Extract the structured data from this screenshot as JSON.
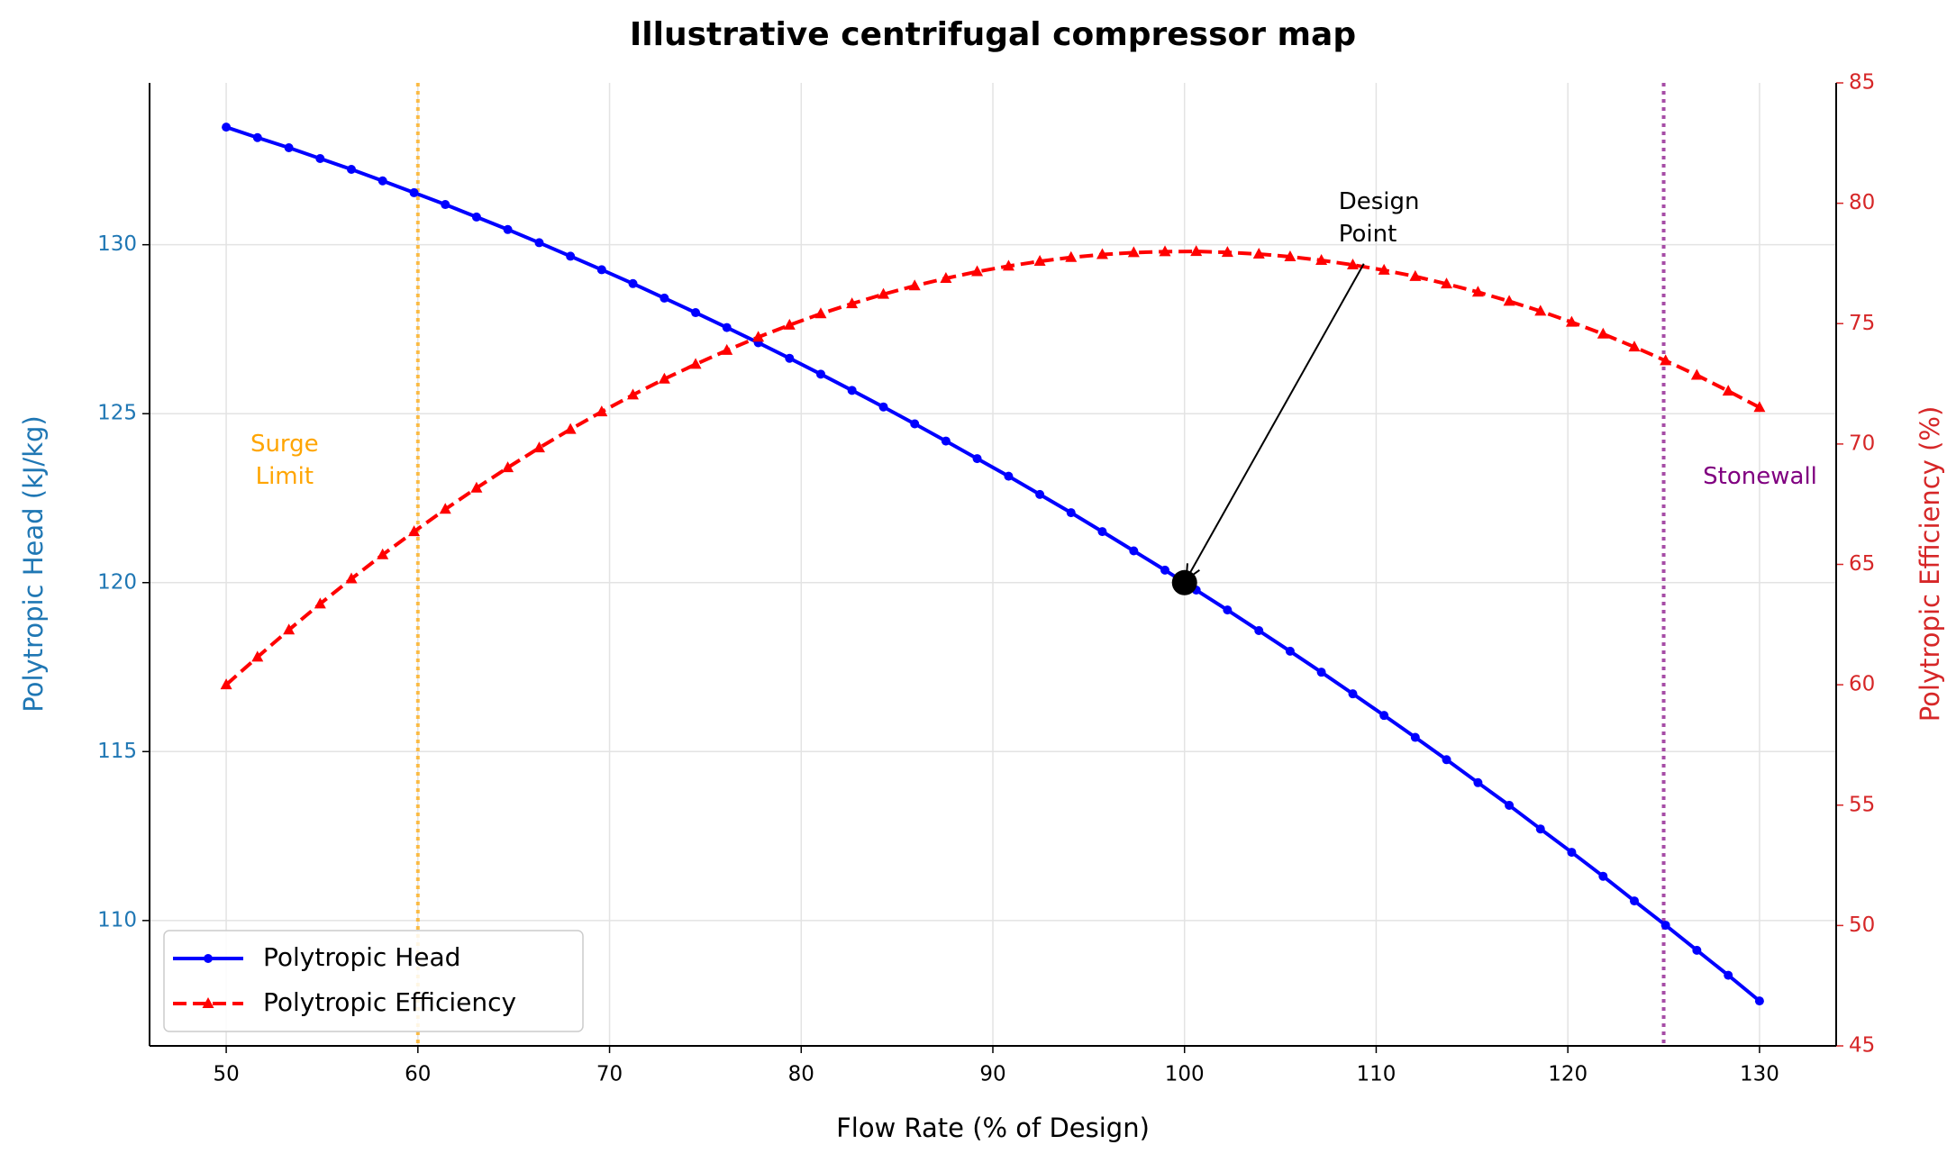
{
  "chart_data": {
    "type": "line",
    "title": "Illustrative centrifugal compressor map",
    "xlabel": "Flow Rate (% of Design)",
    "ylabel": "Polytropic Head (kJ/kg)",
    "y2label": "Polytropic Efficiency (%)",
    "x": [
      50.0,
      51.63,
      53.27,
      54.9,
      56.53,
      58.16,
      59.8,
      61.43,
      63.06,
      64.69,
      66.33,
      67.96,
      69.59,
      71.22,
      72.86,
      74.49,
      76.12,
      77.76,
      79.39,
      81.02,
      82.65,
      84.29,
      85.92,
      87.55,
      89.18,
      90.82,
      92.45,
      94.08,
      95.71,
      97.35,
      98.98,
      100.61,
      102.24,
      103.88,
      105.51,
      107.14,
      108.78,
      110.41,
      112.04,
      113.67,
      115.31,
      116.94,
      118.57,
      120.2,
      121.84,
      123.47,
      125.1,
      126.73,
      128.37,
      130.0
    ],
    "series": [
      {
        "name": "Polytropic Head",
        "color": "#0000ff",
        "marker": "circle",
        "dashed": false,
        "axis": "y",
        "values": [
          133.48,
          133.17,
          132.87,
          132.55,
          132.23,
          131.89,
          131.54,
          131.19,
          130.82,
          130.45,
          130.06,
          129.66,
          129.26,
          128.85,
          128.42,
          127.99,
          127.55,
          127.1,
          126.64,
          126.17,
          125.69,
          125.2,
          124.7,
          124.19,
          123.67,
          123.15,
          122.61,
          122.07,
          121.51,
          120.94,
          120.37,
          119.78,
          119.19,
          118.58,
          117.97,
          117.35,
          116.71,
          116.07,
          115.42,
          114.76,
          114.08,
          113.41,
          112.71,
          112.02,
          111.31,
          110.58,
          109.86,
          109.12,
          108.38,
          107.62
        ]
      },
      {
        "name": "Polytropic Efficiency",
        "color": "#ff0000",
        "marker": "triangle",
        "dashed": true,
        "axis": "y2",
        "values": [
          60.0,
          61.15,
          62.28,
          63.36,
          64.4,
          65.4,
          66.36,
          67.29,
          68.17,
          69.02,
          69.84,
          70.61,
          71.34,
          72.04,
          72.7,
          73.31,
          73.89,
          74.44,
          74.94,
          75.41,
          75.83,
          76.22,
          76.57,
          76.88,
          77.16,
          77.39,
          77.59,
          77.75,
          77.87,
          77.95,
          77.99,
          78.0,
          77.96,
          77.89,
          77.78,
          77.63,
          77.44,
          77.22,
          76.96,
          76.65,
          76.31,
          75.93,
          75.52,
          75.06,
          74.57,
          74.03,
          73.46,
          72.86,
          72.2,
          71.52
        ]
      }
    ],
    "xlim": [
      46,
      134
    ],
    "ylim": [
      106.29,
      134.79
    ],
    "y2lim": [
      45,
      85
    ],
    "xticks": [
      50,
      60,
      70,
      80,
      90,
      100,
      110,
      120,
      130
    ],
    "yticks": [
      110,
      115,
      120,
      125,
      130
    ],
    "y2ticks": [
      45,
      50,
      55,
      60,
      65,
      70,
      75,
      80,
      85
    ],
    "ytick_color": "#1f77b4",
    "y2tick_color": "#d62728",
    "grid": true,
    "legend": "lower left",
    "vlines": [
      {
        "x": 60,
        "color": "#ffa500",
        "label": [
          "Surge",
          "Limit"
        ]
      },
      {
        "x": 125,
        "color": "#800080",
        "label": [
          "Stonewall"
        ]
      }
    ],
    "design_point": {
      "x": 100,
      "y": 120,
      "label": [
        "Design",
        "Point"
      ]
    }
  }
}
